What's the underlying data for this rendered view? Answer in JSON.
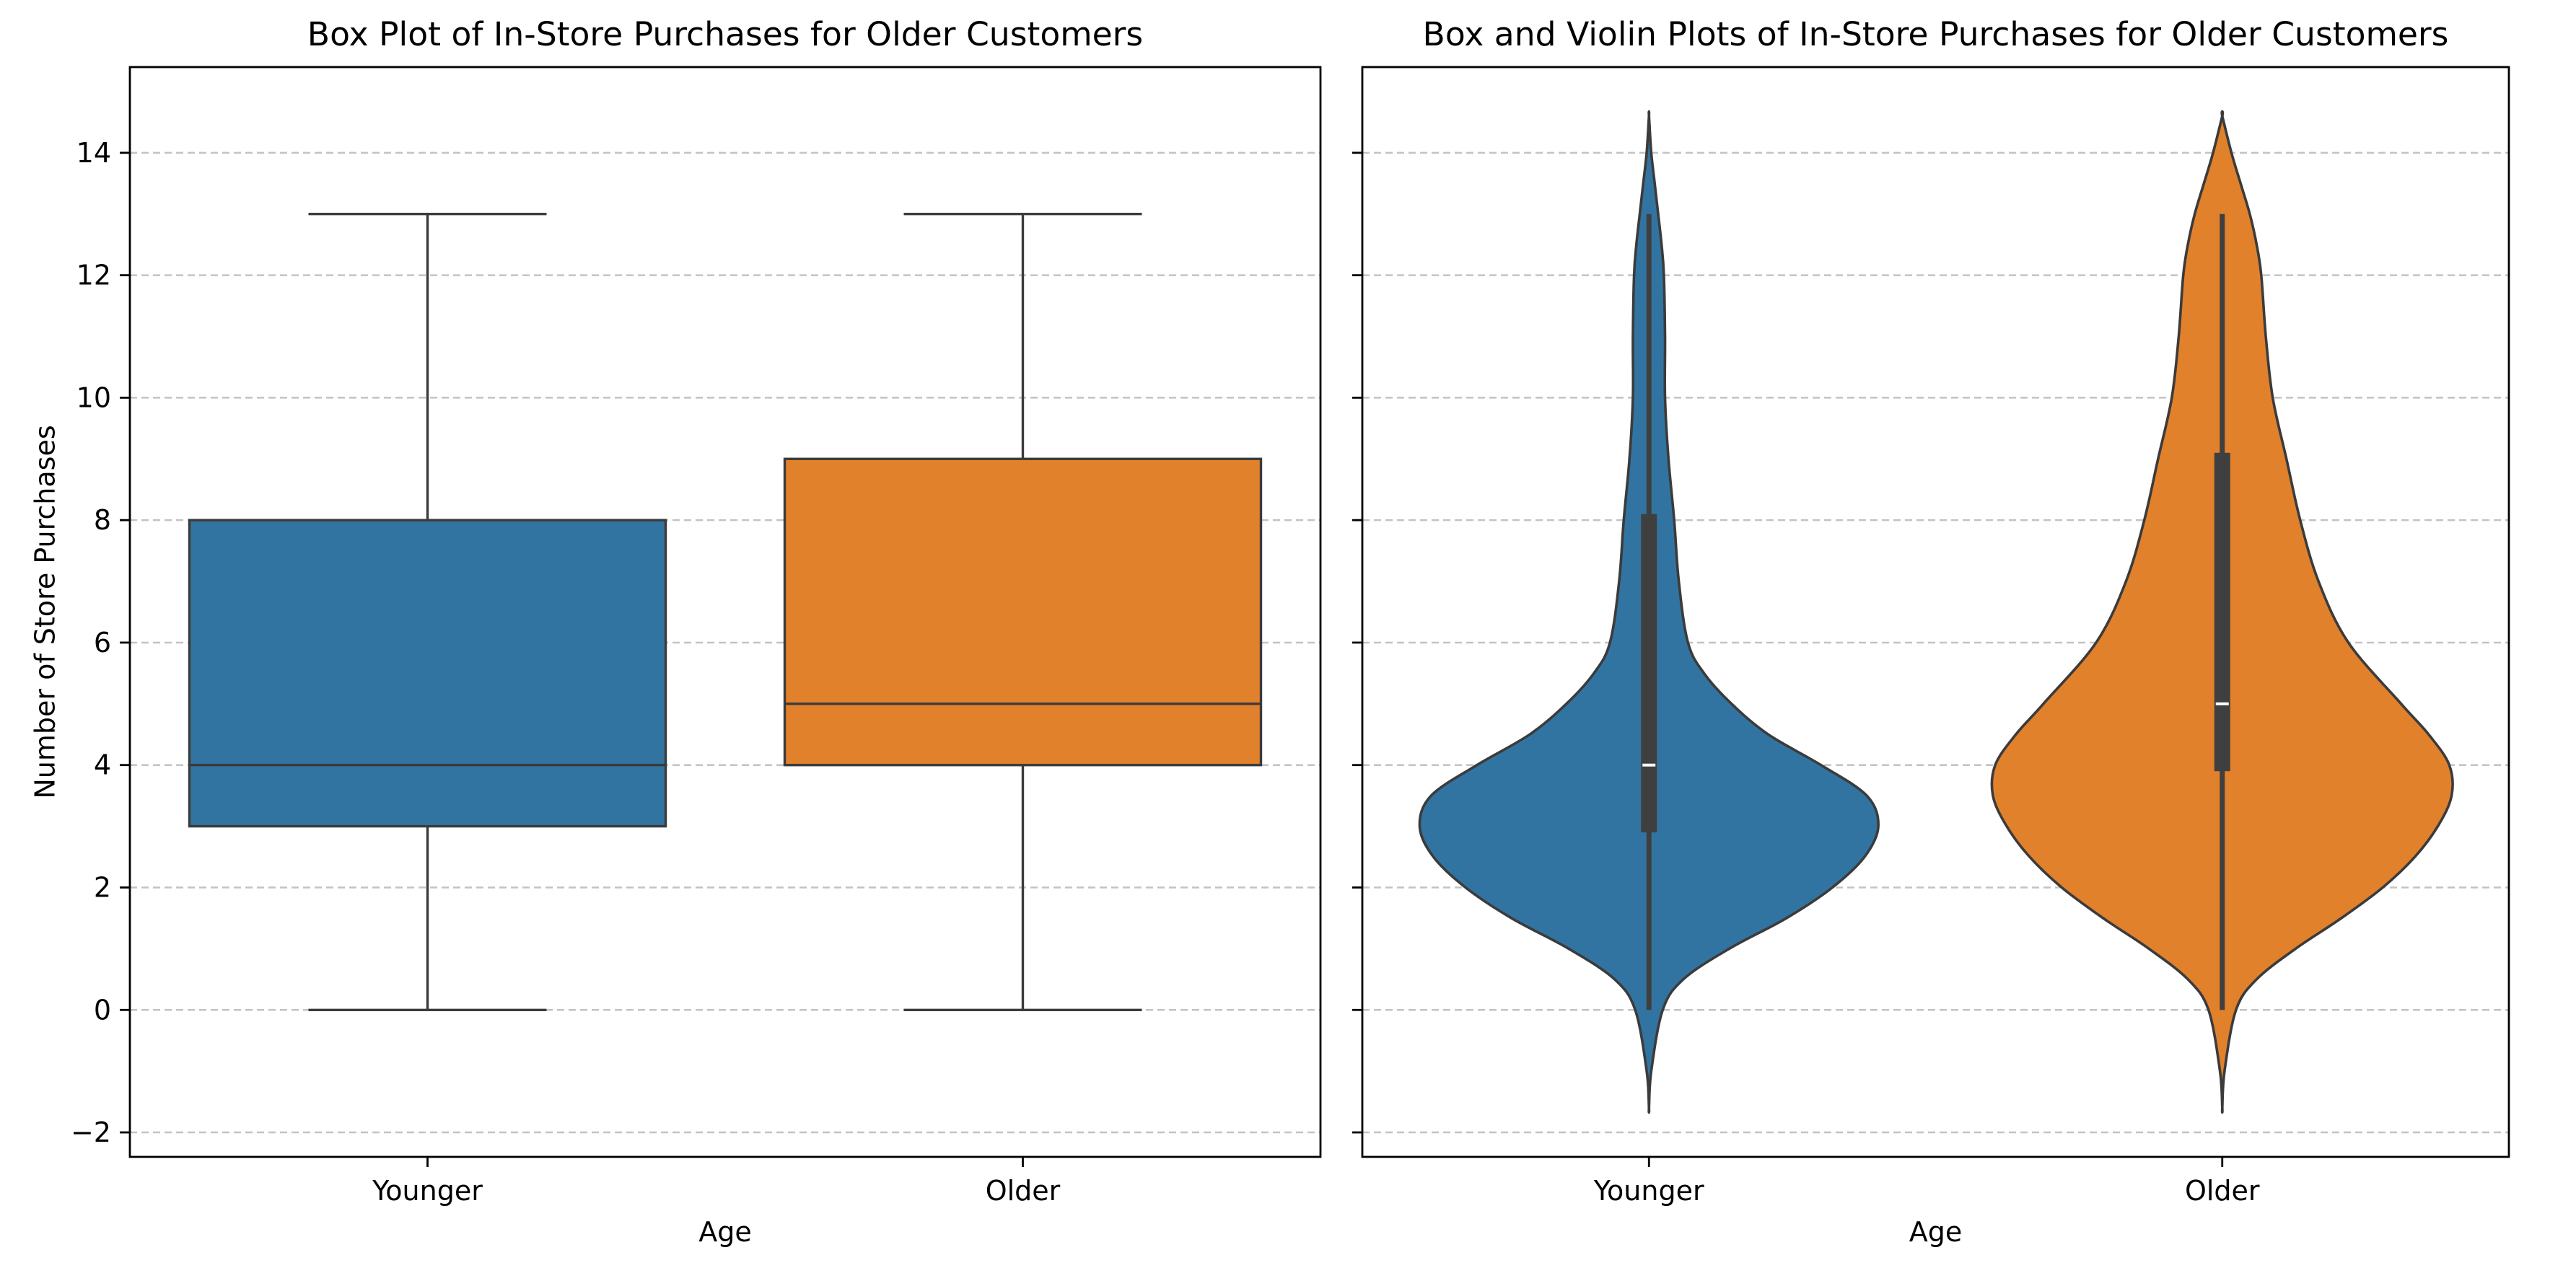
{
  "chart_data": [
    {
      "type": "box",
      "title": "Box Plot of In-Store Purchases for Older Customers",
      "xlabel": "Age",
      "ylabel": "Number of Store Purchases",
      "categories": [
        "Younger",
        "Older"
      ],
      "ylim": [
        -2.4,
        15.4
      ],
      "yticks": [
        -2,
        0,
        2,
        4,
        6,
        8,
        10,
        12,
        14
      ],
      "ytick_labels": [
        "−2",
        "0",
        "2",
        "4",
        "6",
        "8",
        "10",
        "12",
        "14"
      ],
      "grid": "y, dashed",
      "colors": [
        "#3274a1",
        "#e1812c"
      ],
      "boxes": [
        {
          "category": "Younger",
          "whisker_low": 0,
          "q1": 3,
          "median": 4,
          "q3": 8,
          "whisker_high": 13
        },
        {
          "category": "Older",
          "whisker_low": 0,
          "q1": 4,
          "median": 5,
          "q3": 9,
          "whisker_high": 13
        }
      ]
    },
    {
      "type": "violin",
      "title": "Box and Violin Plots of In-Store Purchases for Older Customers",
      "xlabel": "Age",
      "ylabel": "",
      "categories": [
        "Younger",
        "Older"
      ],
      "ylim": [
        -2.4,
        15.4
      ],
      "yticks": [
        -2,
        0,
        2,
        4,
        6,
        8,
        10,
        12,
        14
      ],
      "grid": "y, dashed",
      "colors": [
        "#3274a1",
        "#e1812c"
      ],
      "violins": [
        {
          "category": "Younger",
          "q1": 2.9,
          "median": 4,
          "q3": 8.1,
          "whisker_low": 0,
          "whisker_high": 13,
          "extent": [
            -1.6,
            14.6
          ],
          "density_profile": [
            [
              -1.6,
              0.0
            ],
            [
              -1.0,
              0.01
            ],
            [
              0.0,
              0.06
            ],
            [
              0.5,
              0.15
            ],
            [
              1.0,
              0.35
            ],
            [
              1.5,
              0.6
            ],
            [
              2.0,
              0.8
            ],
            [
              2.5,
              0.94
            ],
            [
              3.0,
              1.0
            ],
            [
              3.5,
              0.95
            ],
            [
              4.0,
              0.75
            ],
            [
              4.5,
              0.52
            ],
            [
              5.0,
              0.36
            ],
            [
              5.5,
              0.24
            ],
            [
              6.0,
              0.17
            ],
            [
              7.0,
              0.13
            ],
            [
              8.0,
              0.11
            ],
            [
              9.0,
              0.085
            ],
            [
              10.0,
              0.07
            ],
            [
              11.0,
              0.07
            ],
            [
              12.0,
              0.065
            ],
            [
              12.5,
              0.055
            ],
            [
              13.0,
              0.04
            ],
            [
              13.5,
              0.025
            ],
            [
              14.0,
              0.01
            ],
            [
              14.6,
              0.0
            ]
          ]
        },
        {
          "category": "Older",
          "q1": 3.9,
          "median": 5,
          "q3": 9.1,
          "whisker_low": 0,
          "whisker_high": 13,
          "extent": [
            -1.6,
            14.6
          ],
          "density_profile": [
            [
              -1.6,
              0.0
            ],
            [
              -1.0,
              0.01
            ],
            [
              0.0,
              0.06
            ],
            [
              0.5,
              0.15
            ],
            [
              1.0,
              0.32
            ],
            [
              1.5,
              0.52
            ],
            [
              2.0,
              0.7
            ],
            [
              2.5,
              0.84
            ],
            [
              3.0,
              0.94
            ],
            [
              3.5,
              1.0
            ],
            [
              4.0,
              0.99
            ],
            [
              4.5,
              0.9
            ],
            [
              5.0,
              0.78
            ],
            [
              6.0,
              0.55
            ],
            [
              7.0,
              0.42
            ],
            [
              8.0,
              0.34
            ],
            [
              9.0,
              0.28
            ],
            [
              10.0,
              0.22
            ],
            [
              11.0,
              0.19
            ],
            [
              12.0,
              0.17
            ],
            [
              12.5,
              0.15
            ],
            [
              13.0,
              0.12
            ],
            [
              13.5,
              0.08
            ],
            [
              14.0,
              0.04
            ],
            [
              14.6,
              0.0
            ]
          ]
        }
      ]
    }
  ]
}
